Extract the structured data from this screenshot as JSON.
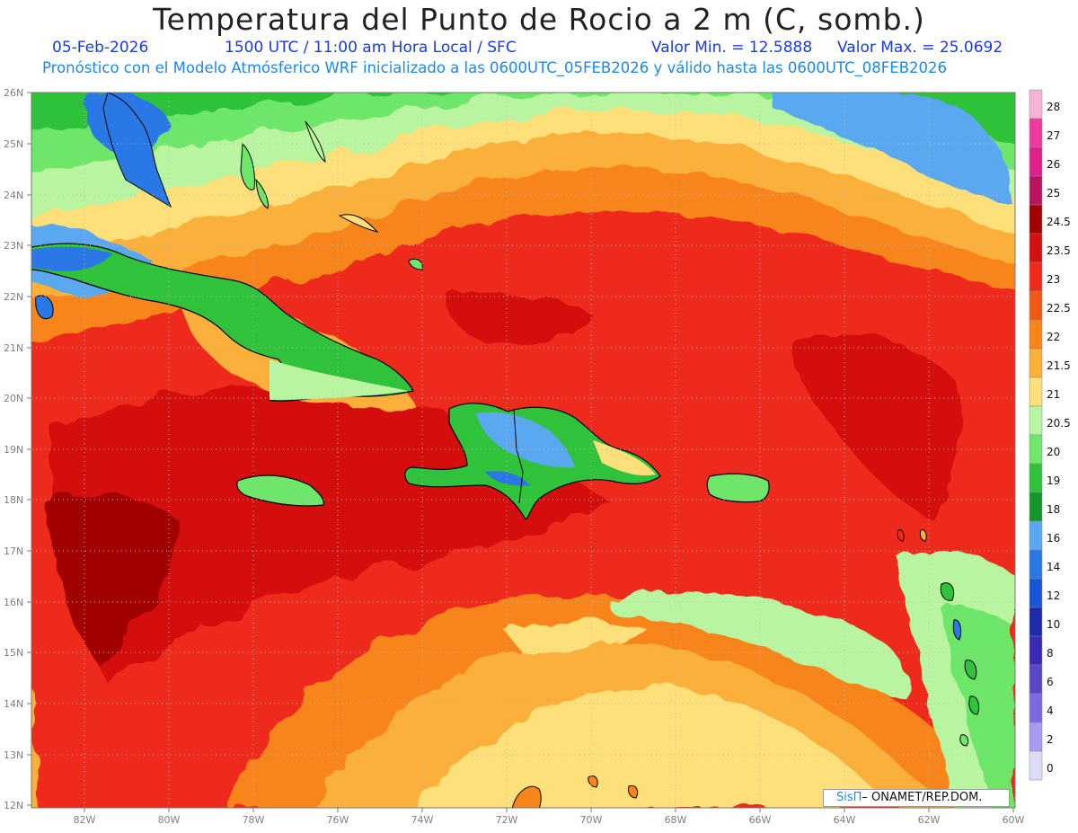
{
  "header": {
    "title": "Temperatura del Punto de Rocio a 2 m (C, somb.)",
    "date": "05-Feb-2026",
    "time": "1500 UTC / 11:00 am Hora Local / SFC",
    "min_label": "Valor Min. = 12.5888",
    "max_label": "Valor Max. = 25.0692",
    "subtitle": "Pronóstico con el Modelo Atmósferico WRF inicializado a las 0600UTC_05FEB2026 y válido hasta las  0600UTC_08FEB2026"
  },
  "axes": {
    "lat_labels": [
      "26N",
      "25N",
      "24N",
      "23N",
      "22N",
      "21N",
      "20N",
      "19N",
      "18N",
      "17N",
      "16N",
      "15N",
      "14N",
      "13N",
      "12N"
    ],
    "lon_labels": [
      "82W",
      "80W",
      "78W",
      "76W",
      "74W",
      "72W",
      "70W",
      "68W",
      "66W",
      "64W",
      "62W",
      "60W"
    ]
  },
  "colorbar": {
    "labels": [
      "28",
      "27",
      "26",
      "25",
      "24.5",
      "23.5",
      "23",
      "22.5",
      "22",
      "21.5",
      "21",
      "20.5",
      "20",
      "19",
      "18",
      "16",
      "14",
      "12",
      "10",
      "8",
      "6",
      "4",
      "2",
      "0"
    ],
    "colors": [
      "#f5b3d6",
      "#ee3a9d",
      "#e0208a",
      "#b8145f",
      "#a00000",
      "#d41010",
      "#ee2a1a",
      "#f05a14",
      "#f7851a",
      "#fbb03a",
      "#fde07a",
      "#b9f5a0",
      "#6ee66a",
      "#2fc23a",
      "#16962a",
      "#5aa8f0",
      "#2a78e6",
      "#1a55d8",
      "#1a2aa8",
      "#3a2ab8",
      "#5a48c8",
      "#7c6ae0",
      "#a79af0",
      "#dcdcf8"
    ]
  },
  "credit": {
    "brand": "SisΠ",
    "text": "– ONAMET/REP.DOM."
  }
}
